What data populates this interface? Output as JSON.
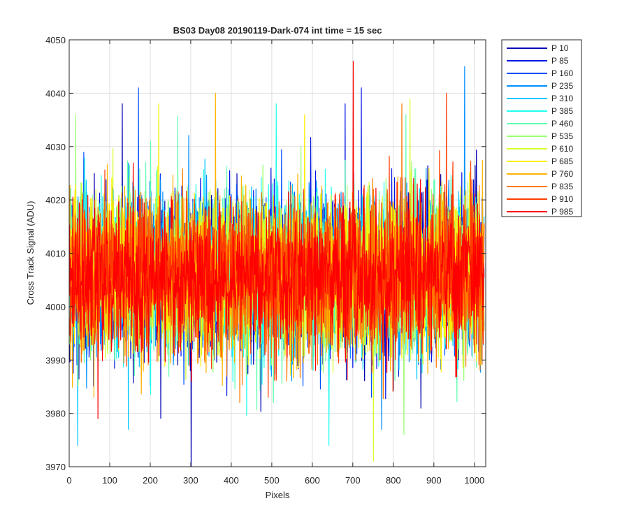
{
  "chart_data": {
    "type": "line",
    "title": "BS03 Day08 20190119-Dark-074 int time = 15 sec",
    "xlabel": "Pixels",
    "ylabel": "Cross Track Signal (ADU)",
    "xlim": [
      0,
      1028
    ],
    "ylim": [
      3970,
      4050
    ],
    "xticks": [
      0,
      100,
      200,
      300,
      400,
      500,
      600,
      700,
      800,
      900,
      1000
    ],
    "yticks": [
      3970,
      3980,
      3990,
      4000,
      4010,
      4020,
      4030,
      4040,
      4050
    ],
    "grid": true,
    "legend_location": "outside-top-right",
    "noise": {
      "mean": 4006,
      "std": 7,
      "points_per_series": 1024
    },
    "series": [
      {
        "name": "P 10",
        "color": "#0000b3",
        "peaks": [
          [
            300,
            3970
          ],
          [
            130,
            4038
          ]
        ]
      },
      {
        "name": "P 85",
        "color": "#0014e6",
        "peaks": [
          [
            720,
            4041
          ],
          [
            680,
            4038
          ]
        ]
      },
      {
        "name": "P 160",
        "color": "#0050ff",
        "peaks": [
          [
            170,
            4041
          ],
          [
            745,
            3983
          ]
        ]
      },
      {
        "name": "P 235",
        "color": "#0090ff",
        "peaks": [
          [
            975,
            4045
          ],
          [
            770,
            3977
          ]
        ]
      },
      {
        "name": "P 310",
        "color": "#00c8ff",
        "peaks": [
          [
            20,
            3974
          ],
          [
            145,
            3977
          ]
        ]
      },
      {
        "name": "P 385",
        "color": "#20ffef",
        "peaks": [
          [
            640,
            3974
          ],
          [
            510,
            4038
          ]
        ]
      },
      {
        "name": "P 460",
        "color": "#60ffb0",
        "peaks": [
          [
            830,
            4036
          ],
          [
            200,
            4031
          ]
        ]
      },
      {
        "name": "P 535",
        "color": "#9bff6f",
        "peaks": [
          [
            825,
            3976
          ],
          [
            15,
            4036
          ]
        ]
      },
      {
        "name": "P 610",
        "color": "#d6ff30",
        "peaks": [
          [
            750,
            3971
          ],
          [
            840,
            4039
          ]
        ]
      },
      {
        "name": "P 685",
        "color": "#ffef00",
        "peaks": [
          [
            220,
            4038
          ],
          [
            580,
            4036
          ]
        ]
      },
      {
        "name": "P 760",
        "color": "#ffb400",
        "peaks": [
          [
            360,
            4040
          ],
          [
            60,
            3983
          ]
        ]
      },
      {
        "name": "P 835",
        "color": "#ff7800",
        "peaks": [
          [
            820,
            4038
          ],
          [
            420,
            3982
          ]
        ]
      },
      {
        "name": "P 910",
        "color": "#ff3c00",
        "peaks": [
          [
            930,
            4040
          ],
          [
            490,
            3983
          ]
        ]
      },
      {
        "name": "P 985",
        "color": "#ff0000",
        "peaks": [
          [
            700,
            4046
          ],
          [
            70,
            3979
          ]
        ]
      }
    ]
  }
}
